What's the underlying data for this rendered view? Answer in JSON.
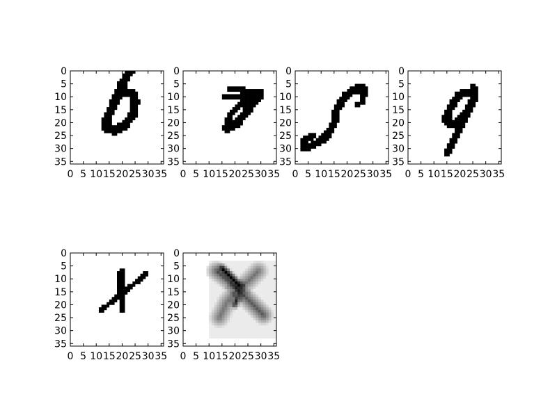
{
  "chart_data": [
    {
      "type": "heatmap",
      "panel": "digit-6",
      "xticks": [
        "0",
        "5",
        "10",
        "15",
        "20",
        "25",
        "30",
        "35"
      ],
      "yticks": [
        "0",
        "5",
        "10",
        "15",
        "20",
        "25",
        "30",
        "35"
      ],
      "xlim": [
        0,
        36
      ],
      "ylim": [
        36,
        0
      ],
      "colormap": "gray_r",
      "strokes": [
        {
          "points": [
            [
              23,
              0
            ],
            [
              20,
              5
            ],
            [
              17,
              12
            ],
            [
              14,
              19
            ],
            [
              14,
              22
            ],
            [
              17,
              23
            ],
            [
              21,
              21
            ],
            [
              24,
              17
            ],
            [
              25,
              12
            ],
            [
              24,
              9
            ],
            [
              21,
              8
            ],
            [
              18,
              10
            ]
          ],
          "width": 3.2,
          "value": 1
        }
      ]
    },
    {
      "type": "heatmap",
      "panel": "digit-7",
      "xticks": [
        "0",
        "5",
        "10",
        "15",
        "20",
        "25",
        "30",
        "35"
      ],
      "yticks": [
        "0",
        "5",
        "10",
        "15",
        "20",
        "25",
        "30",
        "35"
      ],
      "xlim": [
        0,
        36
      ],
      "ylim": [
        36,
        0
      ],
      "colormap": "gray_r",
      "strokes": [
        {
          "points": [
            [
              16,
              10
            ],
            [
              30,
              9
            ]
          ],
          "width": 2.2,
          "value": 1
        },
        {
          "points": [
            [
              18,
              7
            ],
            [
              30,
              8
            ]
          ],
          "width": 2.0,
          "value": 1
        },
        {
          "points": [
            [
              29,
              10
            ],
            [
              25,
              15
            ],
            [
              21,
              20
            ],
            [
              17,
              22
            ]
          ],
          "width": 3.2,
          "value": 1
        },
        {
          "points": [
            [
              17,
              22
            ],
            [
              18,
              17
            ],
            [
              22,
              13
            ],
            [
              26,
              11
            ]
          ],
          "width": 2.6,
          "value": 1
        }
      ]
    },
    {
      "type": "heatmap",
      "panel": "digit-s",
      "xticks": [
        "0",
        "5",
        "10",
        "15",
        "20",
        "25",
        "30",
        "35"
      ],
      "yticks": [
        "0",
        "5",
        "10",
        "15",
        "20",
        "25",
        "30",
        "35"
      ],
      "xlim": [
        0,
        36
      ],
      "ylim": [
        36,
        0
      ],
      "colormap": "gray_r",
      "strokes": [
        {
          "points": [
            [
              27,
              7
            ],
            [
              23,
              7
            ],
            [
              19,
              10
            ],
            [
              16,
              15
            ],
            [
              15,
              20
            ],
            [
              13,
              24
            ],
            [
              10,
              27
            ],
            [
              6,
              29
            ],
            [
              3,
              30
            ]
          ],
          "width": 3.0,
          "value": 1
        },
        {
          "points": [
            [
              3,
              30
            ],
            [
              3,
              27
            ],
            [
              7,
              25
            ]
          ],
          "width": 2.6,
          "value": 1
        },
        {
          "points": [
            [
              27,
              7
            ],
            [
              26,
              12
            ],
            [
              24,
              13
            ]
          ],
          "width": 2.0,
          "value": 1
        }
      ]
    },
    {
      "type": "heatmap",
      "panel": "digit-9",
      "xticks": [
        "0",
        "5",
        "10",
        "15",
        "20",
        "25",
        "30",
        "35"
      ],
      "yticks": [
        "0",
        "5",
        "10",
        "15",
        "20",
        "25",
        "30",
        "35"
      ],
      "xlim": [
        0,
        36
      ],
      "ylim": [
        36,
        0
      ],
      "colormap": "gray_r",
      "strokes": [
        {
          "points": [
            [
              24,
              8
            ],
            [
              20,
              9
            ],
            [
              17,
              13
            ],
            [
              15,
              17
            ],
            [
              15,
              20
            ],
            [
              17,
              21
            ],
            [
              20,
              19
            ],
            [
              23,
              16
            ],
            [
              25,
              12
            ],
            [
              26,
              8
            ],
            [
              25,
              6
            ]
          ],
          "width": 3.0,
          "value": 1
        },
        {
          "points": [
            [
              26,
              9
            ],
            [
              23,
              16
            ],
            [
              20,
              22
            ],
            [
              17,
              28
            ],
            [
              15,
              32
            ]
          ],
          "width": 3.0,
          "value": 1
        }
      ]
    },
    {
      "type": "heatmap",
      "panel": "digit-x",
      "xticks": [
        "0",
        "5",
        "10",
        "15",
        "20",
        "25",
        "30",
        "35"
      ],
      "yticks": [
        "0",
        "5",
        "10",
        "15",
        "20",
        "25",
        "30",
        "35"
      ],
      "xlim": [
        0,
        36
      ],
      "ylim": [
        36,
        0
      ],
      "colormap": "gray_r",
      "strokes": [
        {
          "points": [
            [
              12,
              22
            ],
            [
              17,
              18
            ],
            [
              22,
              14
            ],
            [
              27,
              10
            ],
            [
              29,
              8
            ]
          ],
          "width": 2.0,
          "value": 1
        },
        {
          "points": [
            [
              20,
              7
            ],
            [
              19,
              12
            ],
            [
              20,
              17
            ],
            [
              20,
              22
            ]
          ],
          "width": 2.8,
          "value": 1
        }
      ]
    },
    {
      "type": "heatmap",
      "panel": "average-x",
      "xticks": [
        "0",
        "5",
        "10",
        "15",
        "20",
        "25",
        "30",
        "35"
      ],
      "yticks": [
        "0",
        "5",
        "10",
        "15",
        "20",
        "25",
        "30",
        "35"
      ],
      "xlim": [
        0,
        36
      ],
      "ylim": [
        36,
        0
      ],
      "colormap": "gray_r",
      "background": {
        "x": [
          10,
          36
        ],
        "y": [
          3,
          33
        ],
        "value": 0.08
      },
      "strokes": [
        {
          "points": [
            [
              13,
              7
            ],
            [
              18,
              11
            ],
            [
              21,
              14
            ],
            [
              26,
              19
            ],
            [
              31,
              24
            ]
          ],
          "width": 4.0,
          "value": 0.55
        },
        {
          "points": [
            [
              29,
              7
            ],
            [
              25,
              11
            ],
            [
              21,
              14
            ],
            [
              17,
              19
            ],
            [
              14,
              25
            ]
          ],
          "width": 4.0,
          "value": 0.45
        },
        {
          "points": [
            [
              15,
              6
            ],
            [
              19,
              10
            ],
            [
              22,
              13
            ]
          ],
          "width": 2.2,
          "value": 0.85
        },
        {
          "points": [
            [
              22,
              13
            ],
            [
              21,
              17
            ],
            [
              20,
              20
            ]
          ],
          "width": 2.0,
          "value": 0.7
        }
      ]
    }
  ]
}
